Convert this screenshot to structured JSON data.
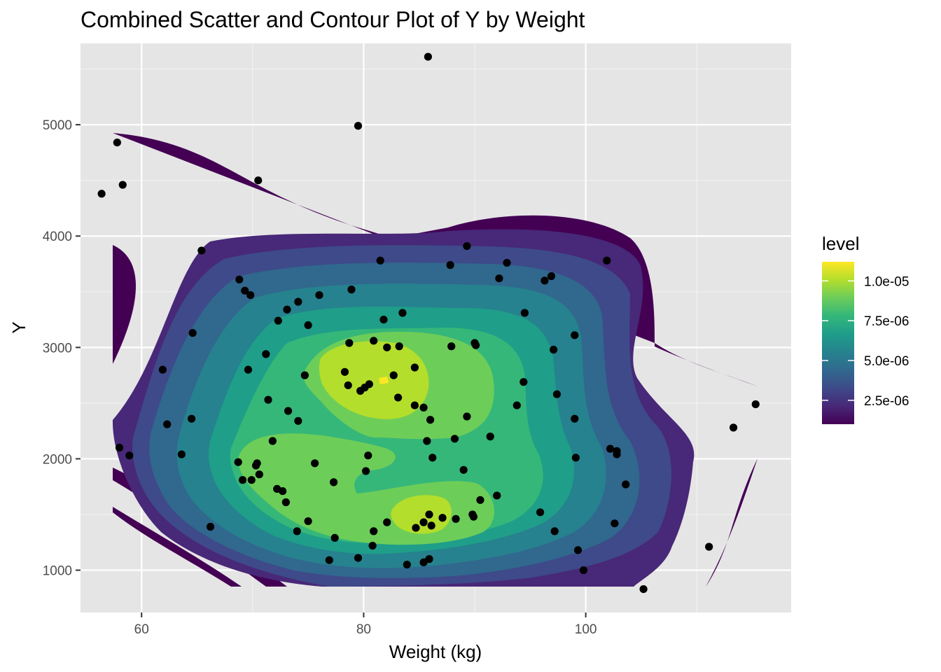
{
  "chart_data": {
    "type": "scatter",
    "subtype": "scatter with filled 2d density contours",
    "title": "Combined Scatter and Contour Plot of Y by Weight",
    "xlabel": "Weight (kg)",
    "ylabel": "Y",
    "xlim": [
      54.5,
      118.5
    ],
    "ylim": [
      620,
      5730
    ],
    "xticks": [
      60,
      80,
      100
    ],
    "xtick_labels": [
      "60",
      "80",
      "100"
    ],
    "yticks": [
      1000,
      2000,
      3000,
      4000,
      5000
    ],
    "ytick_labels": [
      "1000",
      "2000",
      "3000",
      "4000",
      "5000"
    ],
    "grid": true,
    "background": "#E5E5E5",
    "point_color": "#000000",
    "legend": {
      "title": "level",
      "position": "right",
      "ticks": [
        "1.0e-05",
        "7.5e-06",
        "5.0e-06",
        "2.5e-06"
      ],
      "tick_values": [
        1e-05,
        7.5e-06,
        5e-06,
        2.5e-06
      ],
      "range": [
        1e-06,
        1.12e-05
      ],
      "colors": [
        "#440154",
        "#482878",
        "#3E4A89",
        "#31688E",
        "#26828E",
        "#1F9E89",
        "#35B779",
        "#6DCD59",
        "#B4DE2C",
        "#FDE725"
      ]
    },
    "points": [
      [
        85.8,
        5610
      ],
      [
        79.5,
        4990
      ],
      [
        57.8,
        4840
      ],
      [
        58.3,
        4460
      ],
      [
        56.4,
        4380
      ],
      [
        70.5,
        4500
      ],
      [
        65.4,
        3870
      ],
      [
        89.3,
        3910
      ],
      [
        81.5,
        3780
      ],
      [
        87.8,
        3740
      ],
      [
        92.9,
        3760
      ],
      [
        101.9,
        3780
      ],
      [
        96.9,
        3640
      ],
      [
        96.3,
        3600
      ],
      [
        92.2,
        3620
      ],
      [
        68.8,
        3610
      ],
      [
        69.3,
        3510
      ],
      [
        69.8,
        3470
      ],
      [
        78.9,
        3520
      ],
      [
        76.0,
        3470
      ],
      [
        74.1,
        3410
      ],
      [
        73.1,
        3340
      ],
      [
        72.3,
        3240
      ],
      [
        75.0,
        3200
      ],
      [
        81.8,
        3250
      ],
      [
        83.5,
        3310
      ],
      [
        94.5,
        3310
      ],
      [
        64.6,
        3130
      ],
      [
        99.0,
        3110
      ],
      [
        78.7,
        3040
      ],
      [
        80.9,
        3060
      ],
      [
        82.1,
        3000
      ],
      [
        83.2,
        3010
      ],
      [
        87.9,
        3010
      ],
      [
        90.0,
        3040
      ],
      [
        90.1,
        3020
      ],
      [
        97.1,
        2980
      ],
      [
        71.2,
        2940
      ],
      [
        61.9,
        2800
      ],
      [
        69.6,
        2800
      ],
      [
        74.7,
        2750
      ],
      [
        84.6,
        2820
      ],
      [
        82.7,
        2750
      ],
      [
        78.3,
        2780
      ],
      [
        80.5,
        2670
      ],
      [
        80.1,
        2640
      ],
      [
        78.6,
        2660
      ],
      [
        79.7,
        2610
      ],
      [
        94.4,
        2690
      ],
      [
        97.4,
        2580
      ],
      [
        83.1,
        2550
      ],
      [
        71.4,
        2530
      ],
      [
        84.6,
        2480
      ],
      [
        85.4,
        2460
      ],
      [
        93.8,
        2480
      ],
      [
        73.2,
        2430
      ],
      [
        74.1,
        2340
      ],
      [
        64.5,
        2360
      ],
      [
        62.3,
        2310
      ],
      [
        86.0,
        2350
      ],
      [
        89.3,
        2380
      ],
      [
        99.0,
        2360
      ],
      [
        85.7,
        2160
      ],
      [
        71.8,
        2160
      ],
      [
        88.2,
        2180
      ],
      [
        91.4,
        2200
      ],
      [
        58.0,
        2100
      ],
      [
        58.9,
        2030
      ],
      [
        63.6,
        2040
      ],
      [
        86.2,
        2010
      ],
      [
        80.4,
        2030
      ],
      [
        75.6,
        1960
      ],
      [
        68.7,
        1970
      ],
      [
        70.3,
        1940
      ],
      [
        70.4,
        1960
      ],
      [
        89.0,
        1900
      ],
      [
        99.1,
        2010
      ],
      [
        102.2,
        2090
      ],
      [
        102.8,
        2070
      ],
      [
        102.8,
        2040
      ],
      [
        80.2,
        1890
      ],
      [
        70.6,
        1860
      ],
      [
        69.1,
        1810
      ],
      [
        69.9,
        1810
      ],
      [
        77.3,
        1790
      ],
      [
        103.6,
        1770
      ],
      [
        72.2,
        1730
      ],
      [
        72.7,
        1710
      ],
      [
        92.0,
        1670
      ],
      [
        90.5,
        1630
      ],
      [
        73.0,
        1610
      ],
      [
        85.4,
        1430
      ],
      [
        85.9,
        1500
      ],
      [
        87.1,
        1470
      ],
      [
        88.3,
        1460
      ],
      [
        89.8,
        1500
      ],
      [
        89.9,
        1480
      ],
      [
        95.9,
        1520
      ],
      [
        82.1,
        1430
      ],
      [
        84.7,
        1380
      ],
      [
        86.1,
        1400
      ],
      [
        75.0,
        1440
      ],
      [
        74.0,
        1350
      ],
      [
        80.9,
        1350
      ],
      [
        102.6,
        1420
      ],
      [
        97.2,
        1350
      ],
      [
        66.2,
        1390
      ],
      [
        77.4,
        1290
      ],
      [
        80.8,
        1220
      ],
      [
        99.3,
        1180
      ],
      [
        79.5,
        1110
      ],
      [
        76.9,
        1090
      ],
      [
        83.9,
        1050
      ],
      [
        85.4,
        1070
      ],
      [
        85.9,
        1100
      ],
      [
        99.8,
        1000
      ],
      [
        105.2,
        830
      ],
      [
        111.1,
        1210
      ],
      [
        113.3,
        2280
      ],
      [
        115.3,
        2490
      ]
    ]
  }
}
